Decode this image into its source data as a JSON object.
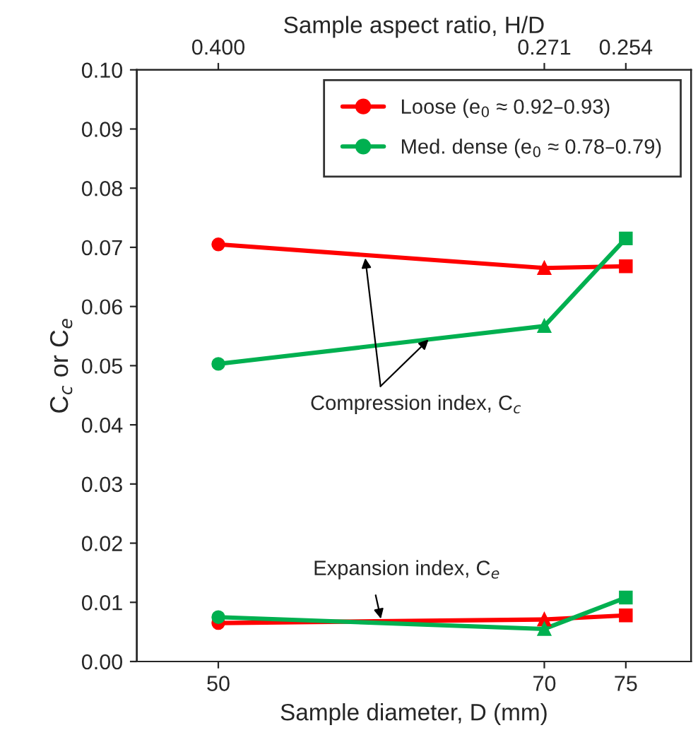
{
  "chart_data": {
    "type": "line",
    "xlabel": "Sample diameter, D (mm)",
    "ylabel": "C$_{c}$ or C$_{e}$",
    "x2label": "Sample aspect ratio, H/D",
    "x": [
      50,
      70,
      75
    ],
    "series": [
      {
        "name": "Loose (e$_{0}$ ≈ 0.92–0.93)",
        "color": "#ff0000",
        "values": [
          0.0705,
          0.0665,
          0.0668
        ],
        "marker": "none"
      },
      {
        "name": "Med. dense (e$_{0}$ ≈ 0.78–0.79)",
        "color": "#00b050",
        "values": [
          0.0503,
          0.0567,
          0.0715
        ],
        "marker": "none"
      },
      {
        "color": "#ff0000",
        "values": [
          0.0065,
          0.0071,
          0.0078
        ],
        "marker": "none"
      },
      {
        "color": "#00b050",
        "values": [
          0.0075,
          0.0055,
          0.0108
        ],
        "marker": "none"
      },
      {
        "type": "scatter",
        "color": "#ff0000",
        "x": [
          50,
          50
        ],
        "values": [
          0.0705,
          0.0065
        ],
        "marker": "circle"
      },
      {
        "type": "scatter",
        "color": "#ff0000",
        "x": [
          70,
          70
        ],
        "values": [
          0.0665,
          0.0071
        ],
        "marker": "triangle"
      },
      {
        "type": "scatter",
        "color": "#ff0000",
        "x": [
          75,
          75
        ],
        "values": [
          0.0668,
          0.0078
        ],
        "marker": "square"
      },
      {
        "type": "scatter",
        "color": "#00b050",
        "x": [
          50,
          50
        ],
        "values": [
          0.0503,
          0.0075
        ],
        "marker": "circle"
      },
      {
        "type": "scatter",
        "color": "#00b050",
        "x": [
          70,
          70
        ],
        "values": [
          0.0567,
          0.0055
        ],
        "marker": "triangle"
      },
      {
        "type": "scatter",
        "color": "#00b050",
        "x": [
          75,
          75
        ],
        "values": [
          0.0715,
          0.0108
        ],
        "marker": "square"
      }
    ],
    "xlim": [
      45,
      79
    ],
    "xticks": [
      50,
      70,
      75
    ],
    "ylim": [
      0,
      0.1
    ],
    "yticks": [
      {
        "value": 0,
        "label": "0.00"
      },
      {
        "value": 0.01,
        "label": "0.01"
      },
      {
        "value": 0.02,
        "label": "0.02"
      },
      {
        "value": 0.03,
        "label": "0.03"
      },
      {
        "value": 0.04,
        "label": "0.04"
      },
      {
        "value": 0.05,
        "label": "0.05"
      },
      {
        "value": 0.06,
        "label": "0.06"
      },
      {
        "value": 0.07,
        "label": "0.07"
      },
      {
        "value": 0.08,
        "label": "0.08"
      },
      {
        "value": 0.09,
        "label": "0.09"
      },
      {
        "value": 0.1,
        "label": "0.10"
      }
    ],
    "annotations": [
      {
        "text": "Compression index, C$_{c}$",
        "x": 59,
        "y": 0.0685
      },
      {
        "text": "Expansion index, C$_{e}$",
        "x": 60,
        "y": 0.0069
      },
      "0.400",
      "0.271",
      "0.254"
    ],
    "grid": false,
    "legend": "top right",
    "line_style": "solid"
  }
}
